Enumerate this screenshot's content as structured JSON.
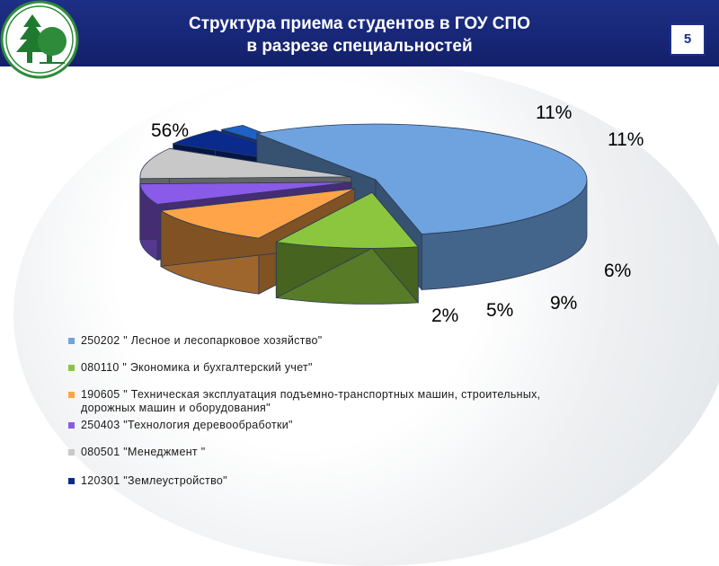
{
  "header": {
    "title_line1": "Структура приема студентов в ГОУ СПО",
    "title_line2": "в разрезе специальностей",
    "page_number": "5"
  },
  "colors": {
    "header": "#1d2f86",
    "blue": "#6ea3e0",
    "green": "#8cc63f",
    "orange": "#ffa448",
    "purple": "#8a5ae8",
    "gray": "#c8c8c8",
    "darkblue": "#0a2a8c",
    "midblue": "#1e62c8"
  },
  "chart_data": {
    "type": "pie",
    "style": "3d-exploded",
    "slices": [
      {
        "label": "250202 \" Лесное и лесопарковое хозяйство\"",
        "value": 56,
        "display": "56%",
        "color": "#6ea3e0"
      },
      {
        "label": "080110 \" Экономика и бухгалтерский учет\"",
        "value": 11,
        "display": "11%",
        "color": "#8cc63f"
      },
      {
        "label": "190605 \" Техническая эксплуатация подъемно-транспортных машин, строительных,\nдорожных машин и оборудования\"",
        "value": 11,
        "display": "11%",
        "color": "#ffa448"
      },
      {
        "label": "250403 \"Технология деревообработки\"",
        "value": 6,
        "display": "6%",
        "color": "#8a5ae8"
      },
      {
        "label": "080501 \"Менеджмент \"",
        "value": 9,
        "display": "9%",
        "color": "#c8c8c8"
      },
      {
        "label": "120301 \"Землеустройство\"",
        "value": 5,
        "display": "5%",
        "color": "#0a2a8c"
      },
      {
        "label": "",
        "value": 2,
        "display": "2%",
        "color": "#1e62c8"
      }
    ]
  }
}
